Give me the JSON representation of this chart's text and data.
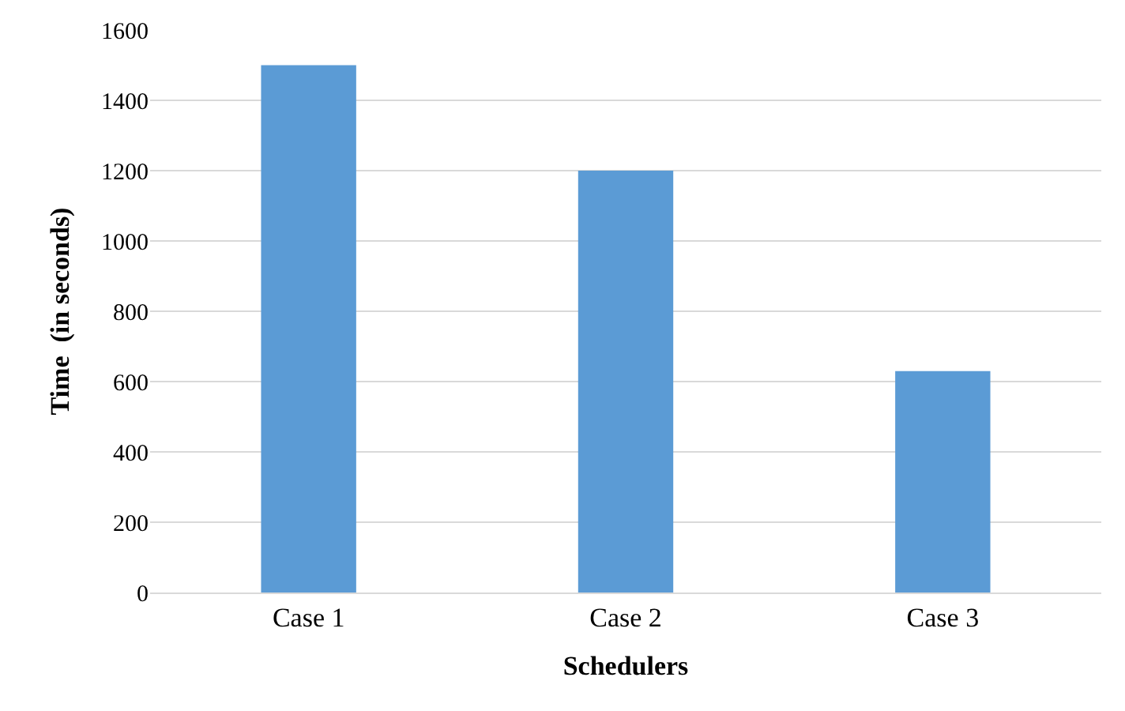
{
  "chart_data": {
    "type": "bar",
    "xlabel": "Schedulers",
    "ylabel": "Time  (in seconds)",
    "categories": [
      "Case 1",
      "Case 2",
      "Case 3"
    ],
    "values": [
      1500,
      1200,
      630
    ],
    "color": "#5b9bd5",
    "ylim": [
      0,
      1600
    ],
    "yticks": [
      0,
      200,
      400,
      600,
      800,
      1000,
      1200,
      1400,
      1600
    ],
    "grid": "y"
  }
}
